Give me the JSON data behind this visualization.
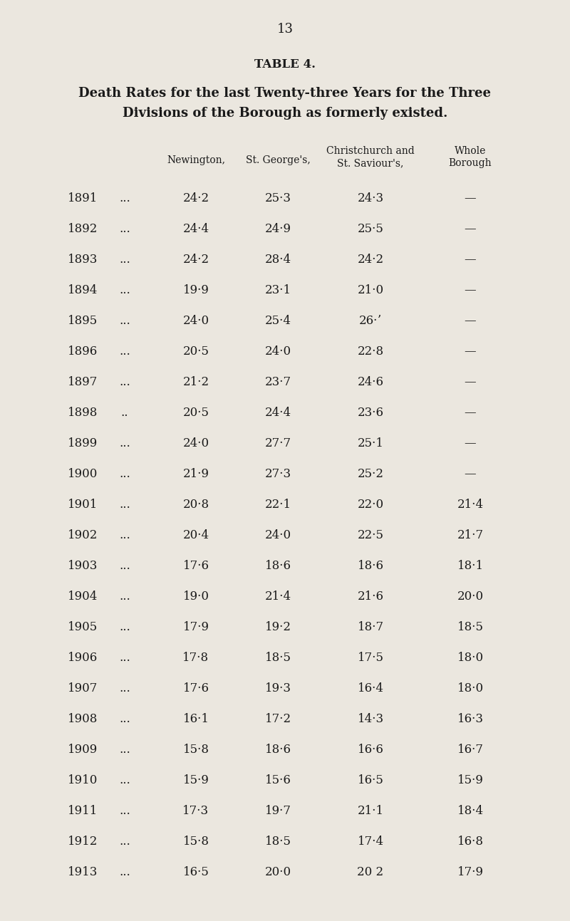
{
  "page_number": "13",
  "table_title": "TABLE 4.",
  "subtitle_line1": "Death Rates for the last Twenty-three Years for the Three",
  "subtitle_line2": "Divisions of the Borough as formerly existed.",
  "bg_color": "#ebe7df",
  "text_color": "#1a1a1a",
  "font_size_page": 13,
  "font_size_title": 12,
  "font_size_subtitle": 13,
  "font_size_header": 10,
  "font_size_data": 12,
  "rows": [
    [
      "1891",
      "...",
      "24·2",
      "25·3",
      "24·3",
      "—"
    ],
    [
      "1892",
      "...",
      "24·4",
      "24·9",
      "25·5",
      "—"
    ],
    [
      "1893",
      "...",
      "24·2",
      "28·4",
      "24·2",
      "—"
    ],
    [
      "1894",
      "...",
      "19·9",
      "23·1",
      "21·0",
      "—"
    ],
    [
      "1895",
      "...",
      "24·0",
      "25·4",
      "26·ʼ",
      "—"
    ],
    [
      "1896",
      "...",
      "20·5",
      "24·0",
      "22·8",
      "—"
    ],
    [
      "1897",
      "...",
      "21·2",
      "23·7",
      "24·6",
      "—"
    ],
    [
      "1898",
      "..",
      "20·5",
      "24·4",
      "23·6",
      "—"
    ],
    [
      "1899",
      "...",
      "24·0",
      "27·7",
      "25·1",
      "—"
    ],
    [
      "1900",
      "...",
      "21·9",
      "27·3",
      "25·2",
      "—"
    ],
    [
      "1901",
      "...",
      "20·8",
      "22·1",
      "22·0",
      "21·4"
    ],
    [
      "1902",
      "...",
      "20·4",
      "24·0",
      "22·5",
      "21·7"
    ],
    [
      "1903",
      "...",
      "17·6",
      "18·6",
      "18·6",
      "18·1"
    ],
    [
      "1904",
      "...",
      "19·0",
      "21·4",
      "21·6",
      "20·0"
    ],
    [
      "1905",
      "...",
      "17·9",
      "19·2",
      "18·7",
      "18·5"
    ],
    [
      "1906",
      "...",
      "17·8",
      "18·5",
      "17·5",
      "18·0"
    ],
    [
      "1907",
      "...",
      "17·6",
      "19·3",
      "16·4",
      "18·0"
    ],
    [
      "1908",
      "...",
      "16·1",
      "17·2",
      "14·3",
      "16·3"
    ],
    [
      "1909",
      "...",
      "15·8",
      "18·6",
      "16·6",
      "16·7"
    ],
    [
      "1910",
      "...",
      "15·9",
      "15·6",
      "16·5",
      "15·9"
    ],
    [
      "1911",
      "...",
      "17·3",
      "19·7",
      "21·1",
      "18·4"
    ],
    [
      "1912",
      "...",
      "15·8",
      "18·5",
      "17·4",
      "16·8"
    ],
    [
      "1913",
      "...",
      "16·5",
      "20·0",
      "20 2",
      "17·9"
    ]
  ]
}
